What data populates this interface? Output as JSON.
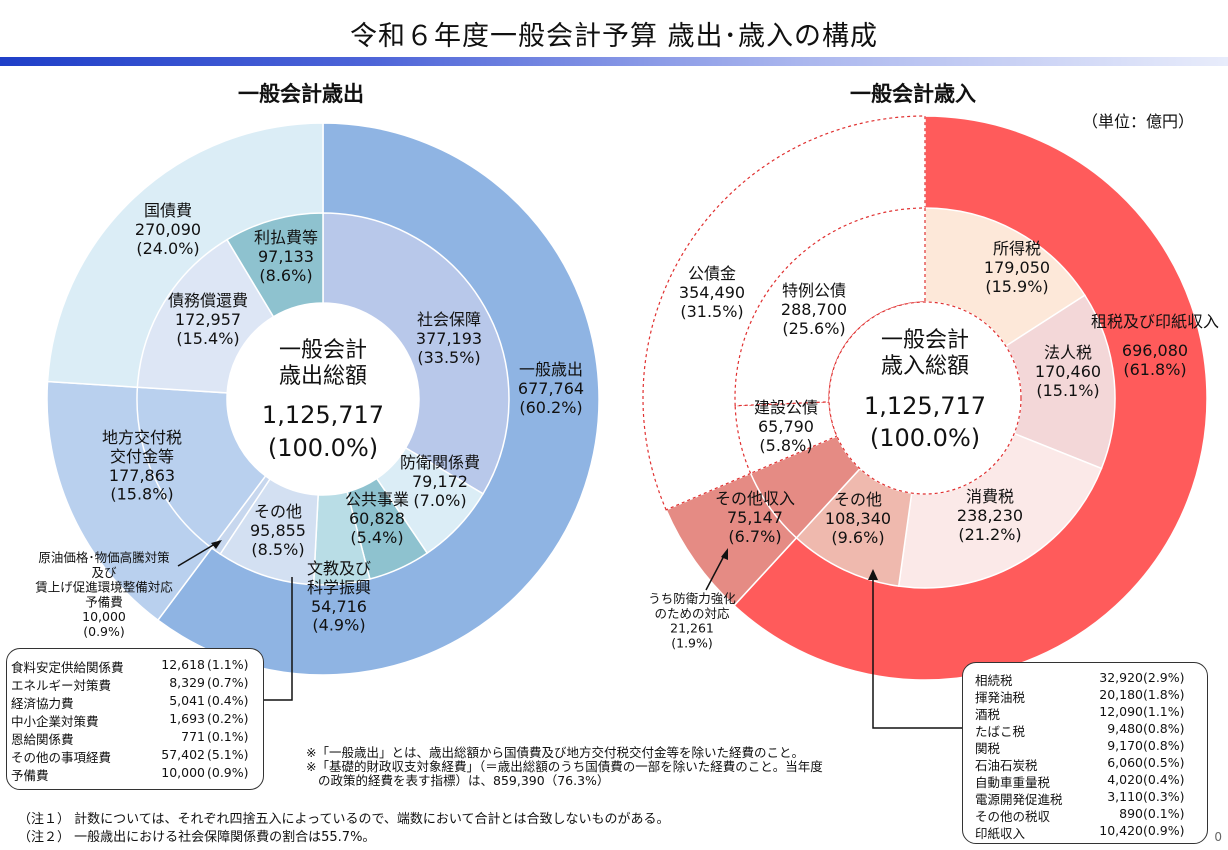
{
  "title": "令和６年度一般会計予算 歳出･歳入の構成",
  "unit": "（単位：億円）",
  "colors": {
    "title_bar_start": "#1f3fc8",
    "expenditure_outer_general": "#8fb4e3",
    "expenditure_outer_debt": "#dbedf6",
    "expenditure_outer_transfer": "#b9d0ee",
    "revenue_outer_tax": "#ff5b5b",
    "revenue_outer_other": "#e58b84",
    "revenue_outer_bond": "#ffffff"
  },
  "expenditure": {
    "heading": "一般会計歳出",
    "center_title_1": "一般会計",
    "center_title_2": "歳出総額",
    "center_value": "1,125,717",
    "center_pct": "(100.0%)",
    "callout_price": [
      "原油価格･物価高騰対策",
      "及び",
      "賃上げ促進環境整備対応",
      "予備費",
      "10,000",
      "(0.9%)"
    ],
    "breakdown": [
      {
        "name": "食料安定供給関係費",
        "value": "12,618",
        "pct": "(1.1%)"
      },
      {
        "name": "エネルギー対策費",
        "value": "8,329",
        "pct": "(0.7%)"
      },
      {
        "name": "経済協力費",
        "value": "5,041",
        "pct": "(0.4%)"
      },
      {
        "name": "中小企業対策費",
        "value": "1,693",
        "pct": "(0.2%)"
      },
      {
        "name": "恩給関係費",
        "value": "771",
        "pct": "(0.1%)"
      },
      {
        "name": "その他の事項経費",
        "value": "57,402",
        "pct": "(5.1%)"
      },
      {
        "name": "予備費",
        "value": "10,000",
        "pct": "(0.9%)"
      }
    ]
  },
  "revenue": {
    "heading": "一般会計歳入",
    "center_title_1": "一般会計",
    "center_title_2": "歳入総額",
    "center_value": "1,125,717",
    "center_pct": "(100.0%)",
    "callout_defense": [
      "うち防衛力強化",
      "のための対応",
      "21,261",
      "(1.9%)"
    ],
    "breakdown": [
      {
        "name": "相続税",
        "value": "32,920",
        "pct": "(2.9%)"
      },
      {
        "name": "揮発油税",
        "value": "20,180",
        "pct": "(1.8%)"
      },
      {
        "name": "酒税",
        "value": "12,090",
        "pct": "(1.1%)"
      },
      {
        "name": "たばこ税",
        "value": "9,480",
        "pct": "(0.8%)"
      },
      {
        "name": "関税",
        "value": "9,170",
        "pct": "(0.8%)"
      },
      {
        "name": "石油石炭税",
        "value": "6,060",
        "pct": "(0.5%)"
      },
      {
        "name": "自動車重量税",
        "value": "4,020",
        "pct": "(0.4%)"
      },
      {
        "name": "電源開発促進税",
        "value": "3,110",
        "pct": "(0.3%)"
      },
      {
        "name": "その他の税収",
        "value": "890",
        "pct": "(0.1%)"
      },
      {
        "name": "印紙収入",
        "value": "10,420",
        "pct": "(0.9%)"
      }
    ]
  },
  "notes": {
    "def1": "※「一般歳出」とは、歳出総額から国債費及び地方交付税交付金等を除いた経費のこと。",
    "def2a": "※「基礎的財政収支対象経費」（＝歳出総額のうち国債費の一部を除いた経費のこと。当年度",
    "def2b": "の政策的経費を表す指標）は、859,390（76.3%）",
    "foot1": "（注１） 計数については、それぞれ四捨五入によっているので、端数において合計とは合致しないものがある。",
    "foot2": "（注２） 一般歳出における社会保障関係費の割合は55.7%。"
  },
  "page_number": "0",
  "chart_data": [
    {
      "type": "pie",
      "title": "一般会計歳出",
      "total": 1125717,
      "outer_ring": [
        {
          "name": "一般歳出",
          "value": 677764,
          "pct": 60.2
        },
        {
          "name": "地方交付税交付金等",
          "value": 177863,
          "pct": 15.8
        },
        {
          "name": "国債費",
          "value": 270090,
          "pct": 24.0
        }
      ],
      "inner_ring": [
        {
          "name": "社会保障",
          "value": 377193,
          "pct": 33.5
        },
        {
          "name": "防衛関係費",
          "value": 79172,
          "pct": 7.0
        },
        {
          "name": "公共事業",
          "value": 60828,
          "pct": 5.4
        },
        {
          "name": "文教及び科学振興",
          "value": 54716,
          "pct": 4.9
        },
        {
          "name": "その他",
          "value": 95855,
          "pct": 8.5
        },
        {
          "name": "原油価格･物価高騰対策及び賃上げ促進環境整備対応予備費",
          "value": 10000,
          "pct": 0.9
        },
        {
          "name": "地方交付税交付金等",
          "value": 177863,
          "pct": 15.8
        },
        {
          "name": "債務償還費",
          "value": 172957,
          "pct": 15.4
        },
        {
          "name": "利払費等",
          "value": 97133,
          "pct": 8.6
        }
      ]
    },
    {
      "type": "pie",
      "title": "一般会計歳入",
      "total": 1125717,
      "outer_ring": [
        {
          "name": "租税及び印紙収入",
          "value": 696080,
          "pct": 61.8
        },
        {
          "name": "その他収入",
          "value": 75147,
          "pct": 6.7
        },
        {
          "name": "公債金",
          "value": 354490,
          "pct": 31.5
        }
      ],
      "inner_ring": [
        {
          "name": "所得税",
          "value": 179050,
          "pct": 15.9
        },
        {
          "name": "法人税",
          "value": 170460,
          "pct": 15.1
        },
        {
          "name": "消費税",
          "value": 238230,
          "pct": 21.2
        },
        {
          "name": "その他",
          "value": 108340,
          "pct": 9.6
        },
        {
          "name": "その他収入",
          "value": 75147,
          "pct": 6.7
        },
        {
          "name": "建設公債",
          "value": 65790,
          "pct": 5.8
        },
        {
          "name": "特例公債",
          "value": 288700,
          "pct": 25.6
        }
      ]
    }
  ]
}
